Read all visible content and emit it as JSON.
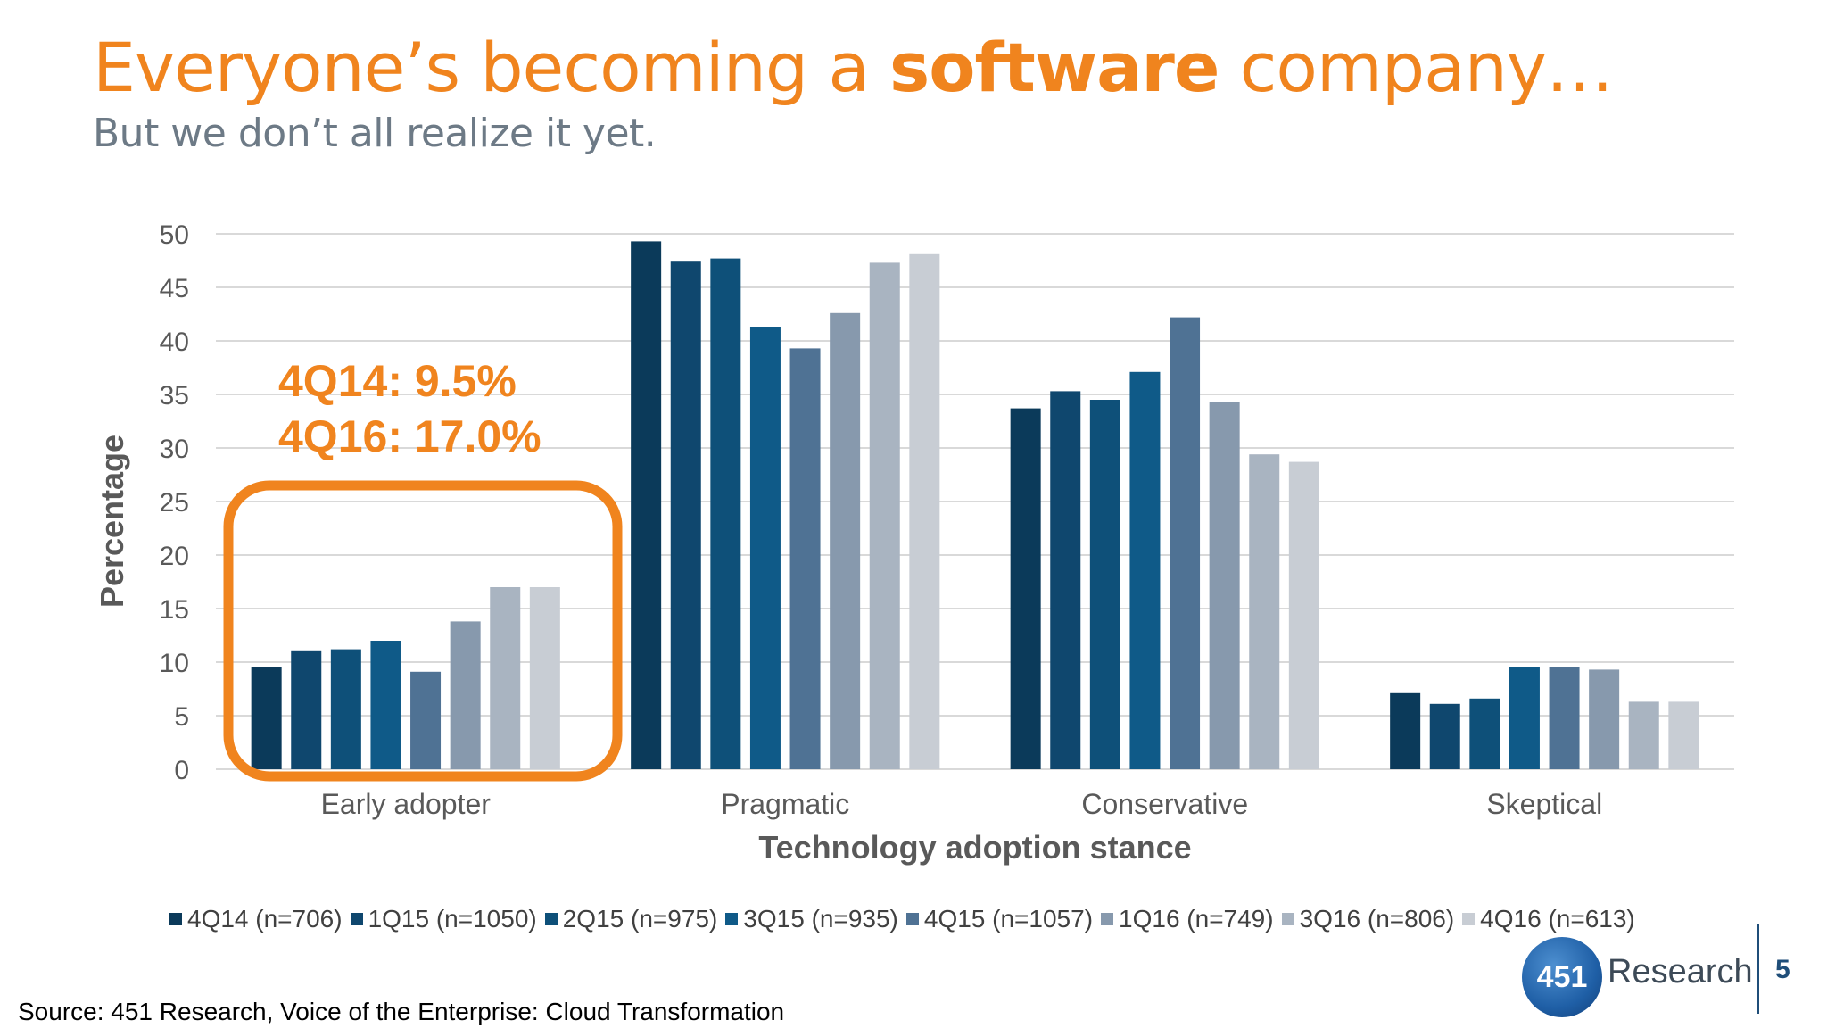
{
  "slide": {
    "title_part1": "Everyone’s becoming a ",
    "title_bold": "software",
    "title_part2": " company…",
    "subtitle": "But we don’t all realize it yet.",
    "source": "Source: 451 Research, Voice of the Enterprise: Cloud Transformation",
    "page_number": "5",
    "logo_number": "451",
    "logo_text": "Research"
  },
  "colors": {
    "title": "#f0841e",
    "highlight": "#f0841e",
    "grid": "#d9d9d9",
    "axis_text": "#595959"
  },
  "chart_data": {
    "type": "bar",
    "xlabel": "Technology adoption stance",
    "ylabel": "Percentage",
    "ylim": [
      0,
      50
    ],
    "yticks": [
      "0",
      "5",
      "10",
      "15",
      "20",
      "25",
      "30",
      "35",
      "40",
      "45",
      "50"
    ],
    "grid": true,
    "legend_position": "bottom",
    "categories": [
      "Early adopter",
      "Pragmatic",
      "Conservative",
      "Skeptical"
    ],
    "series": [
      {
        "name": "4Q14 (n=706)",
        "color": "#0b3a5a",
        "values": [
          9.5,
          49.3,
          33.7,
          7.1
        ]
      },
      {
        "name": "1Q15 (n=1050)",
        "color": "#0f476e",
        "values": [
          11.1,
          47.4,
          35.3,
          6.1
        ]
      },
      {
        "name": "2Q15 (n=975)",
        "color": "#0e5079",
        "values": [
          11.2,
          47.7,
          34.5,
          6.6
        ]
      },
      {
        "name": "3Q15 (n=935)",
        "color": "#0f5a88",
        "values": [
          12.0,
          41.3,
          37.1,
          9.5
        ]
      },
      {
        "name": "4Q15 (n=1057)",
        "color": "#4f7294",
        "values": [
          9.1,
          39.3,
          42.2,
          9.5
        ]
      },
      {
        "name": "1Q16 (n=749)",
        "color": "#8799ad",
        "values": [
          13.8,
          42.6,
          34.3,
          9.3
        ]
      },
      {
        "name": "3Q16 (n=806)",
        "color": "#a9b4c1",
        "values": [
          17.0,
          47.3,
          29.4,
          6.3
        ]
      },
      {
        "name": "4Q16 (n=613)",
        "color": "#c8cdd4",
        "values": [
          17.0,
          48.1,
          28.7,
          6.3
        ]
      }
    ],
    "annotations": [
      "4Q14: 9.5%",
      "4Q16: 17.0%"
    ]
  }
}
